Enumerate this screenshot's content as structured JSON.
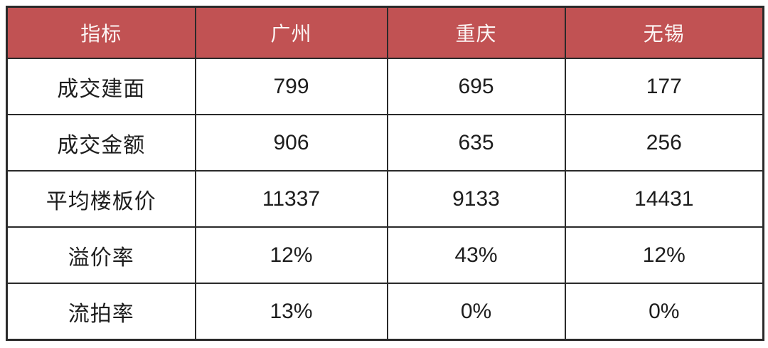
{
  "table": {
    "header": [
      "指标",
      "广州",
      "重庆",
      "无锡"
    ],
    "rows": [
      [
        "成交建面",
        "799",
        "695",
        "177"
      ],
      [
        "成交金额",
        "906",
        "635",
        "256"
      ],
      [
        "平均楼板价",
        "11337",
        "9133",
        "14431"
      ],
      [
        "溢价率",
        "12%",
        "43%",
        "12%"
      ],
      [
        "流拍率",
        "13%",
        "0%",
        "0%"
      ]
    ]
  },
  "colors": {
    "header_bg": "#C15253",
    "header_text": "#FCF6F5",
    "border": "#2A2A2A",
    "cell_text": "#1D1D1D",
    "cell_bg": "#FFFFFF",
    "page_bg": "#FFFFFF"
  },
  "chart_data": {
    "type": "table",
    "columns": [
      "指标",
      "广州",
      "重庆",
      "无锡"
    ],
    "rows": [
      [
        "成交建面",
        799,
        695,
        177
      ],
      [
        "成交金额",
        906,
        635,
        256
      ],
      [
        "平均楼板价",
        11337,
        9133,
        14431
      ],
      [
        "溢价率",
        "12%",
        "43%",
        "12%"
      ],
      [
        "流拍率",
        "13%",
        "0%",
        "0%"
      ]
    ],
    "title": "",
    "legend_position": "none",
    "grid": true
  }
}
